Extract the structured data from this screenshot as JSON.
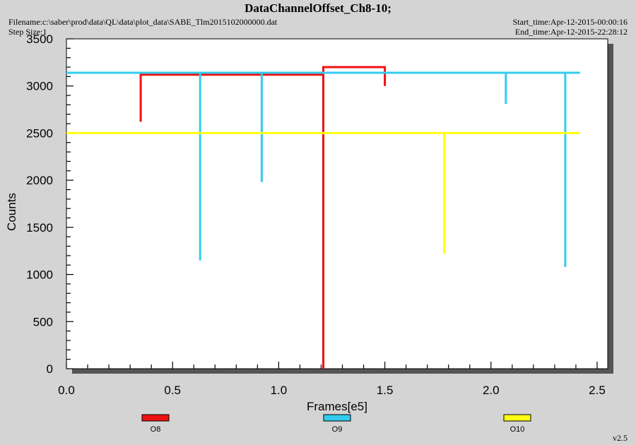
{
  "header": {
    "title": "DataChannelOffset_Ch8-10;",
    "filename": "Filename:c:\\saber\\prod\\data\\QL\\data\\plot_data\\SABE_Tlm2015102000000.dat",
    "step_size": "Step Size:1",
    "start_time": "Start_time:Apr-12-2015-00:00:16",
    "end_time": "End_time:Apr-12-2015-22:28:12"
  },
  "version": "v2.5",
  "chart_data": {
    "type": "line",
    "xlabel": "Frames[e5]",
    "ylabel": "Counts",
    "xlim": [
      0,
      2.55
    ],
    "ylim": [
      0,
      3500
    ],
    "x_ticks": [
      "0.0",
      "0.5",
      "1.0",
      "1.5",
      "2.0",
      "2.5"
    ],
    "y_ticks": [
      "0",
      "500",
      "1000",
      "1500",
      "2000",
      "2500",
      "3000",
      "3500"
    ],
    "legend_position": "bottom",
    "series": [
      {
        "name": "O8",
        "color": "#ee1111",
        "x": [
          0.35,
          0.35,
          0.35,
          0.35,
          1.21,
          1.21,
          1.21,
          1.21,
          1.5,
          1.5,
          1.5
        ],
        "y": [
          3120,
          2620,
          3120,
          3120,
          3120,
          0,
          3200,
          3200,
          3200,
          3000,
          3200
        ]
      },
      {
        "name": "O9",
        "color": "#33ccee",
        "x": [
          0.0,
          0.63,
          0.63,
          0.63,
          0.92,
          0.92,
          0.92,
          2.07,
          2.07,
          2.07,
          2.35,
          2.35,
          2.35,
          2.42
        ],
        "y": [
          3140,
          3140,
          1150,
          3140,
          3140,
          1980,
          3140,
          3140,
          2810,
          3140,
          3140,
          1080,
          3140,
          3140
        ]
      },
      {
        "name": "O10",
        "color": "#ffff11",
        "x": [
          0.0,
          1.78,
          1.78,
          1.78,
          2.42
        ],
        "y": [
          2500,
          2500,
          1220,
          2500,
          2500
        ]
      }
    ]
  }
}
